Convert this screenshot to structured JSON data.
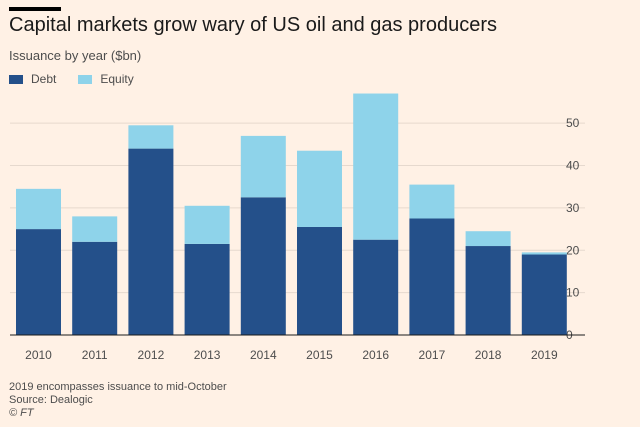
{
  "header": {
    "title": "Capital markets grow wary of US oil and gas producers",
    "subtitle": "Issuance by year ($bn)"
  },
  "footer": {
    "note": "2019 encompasses issuance to mid-October",
    "source": "Source: Dealogic",
    "copyright": "© FT"
  },
  "colors": {
    "debt": "#24508a",
    "equity": "#8ed3ea",
    "grid": "#e6d9ce",
    "tick_text": "#4d4d4d"
  },
  "chart_data": {
    "type": "bar",
    "stacked": true,
    "categories": [
      "2010",
      "2011",
      "2012",
      "2013",
      "2014",
      "2015",
      "2016",
      "2017",
      "2018",
      "2019"
    ],
    "series": [
      {
        "name": "Debt",
        "values": [
          25,
          22,
          44,
          21.5,
          32.5,
          25.5,
          22.5,
          27.5,
          21,
          19
        ]
      },
      {
        "name": "Equity",
        "values": [
          9.5,
          6,
          5.5,
          9,
          14.5,
          18,
          34.5,
          8,
          3.5,
          0.5
        ]
      }
    ],
    "y_ticks": [
      "0",
      "10",
      "20",
      "30",
      "40",
      "50"
    ],
    "ylim": [
      0,
      55
    ],
    "legend_position": "top-left",
    "grid": true
  }
}
